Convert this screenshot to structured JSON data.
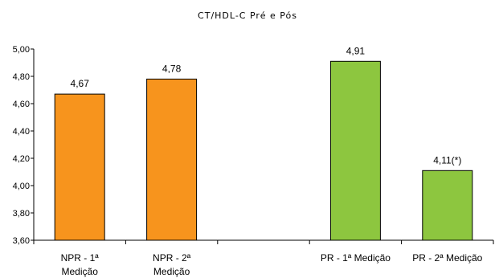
{
  "chart_data": {
    "type": "bar",
    "title": "CT/HDL-C  Pré e Pós",
    "xlabel": "",
    "ylabel": "",
    "ylim": [
      3.6,
      5.0
    ],
    "yticks": [
      "3,60",
      "3,80",
      "4,00",
      "4,20",
      "4,40",
      "4,60",
      "4,80",
      "5,00"
    ],
    "ytick_values": [
      3.6,
      3.8,
      4.0,
      4.2,
      4.4,
      4.6,
      4.8,
      5.0
    ],
    "grid": false,
    "legend": "none",
    "categories": [
      {
        "line1": "NPR - 1ª",
        "line2": "Medição"
      },
      {
        "line1": "NPR - 2ª",
        "line2": "Medição"
      },
      {
        "line1": "",
        "line2": ""
      },
      {
        "line1": "PR - 1ª Medição",
        "line2": ""
      },
      {
        "line1": "PR - 2ª Medição",
        "line2": ""
      }
    ],
    "values": [
      4.67,
      4.78,
      null,
      4.91,
      4.11
    ],
    "data_labels": [
      "4,67",
      "4,78",
      "",
      "4,91",
      "4,11(*)"
    ],
    "colors": [
      "#F7941D",
      "#F7941D",
      null,
      "#8DC63F",
      "#8DC63F"
    ]
  }
}
